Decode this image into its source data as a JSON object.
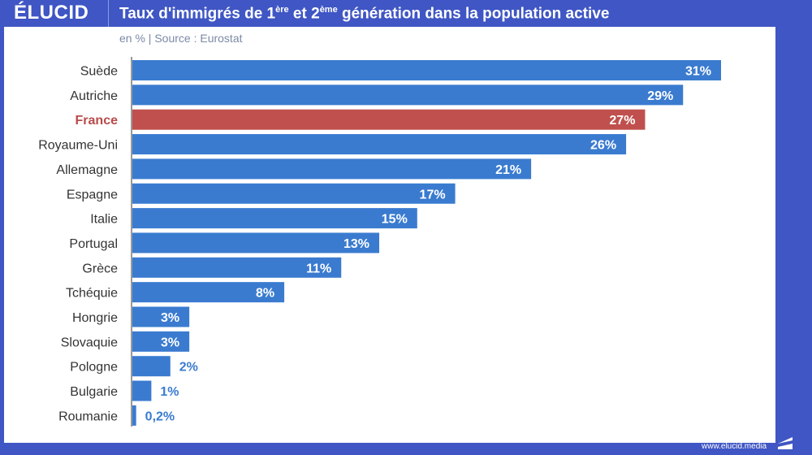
{
  "header": {
    "logo": "ÉLUCID",
    "title_parts": [
      "Taux d'immigrés de 1",
      "ère",
      " et 2",
      "ème",
      " génération dans la population active"
    ]
  },
  "subtitle": "en %  |  Source : Eurostat",
  "footer": {
    "url": "www.elucid.media"
  },
  "colors": {
    "bar": "#3a7bd0",
    "highlight": "#c0504d",
    "header": "#3f56c4",
    "label_outside": "#3a7bd0"
  },
  "chart_data": {
    "type": "bar",
    "orientation": "horizontal",
    "title": "Taux d'immigrés de 1ère et 2ème génération dans la population active",
    "subtitle": "en % | Source : Eurostat",
    "xlabel": "",
    "ylabel": "",
    "unit": "%",
    "xlim": [
      0,
      31
    ],
    "grid": false,
    "highlight": "France",
    "categories": [
      "Suède",
      "Autriche",
      "France",
      "Royaume-Uni",
      "Allemagne",
      "Espagne",
      "Italie",
      "Portugal",
      "Grèce",
      "Tchéquie",
      "Hongrie",
      "Slovaquie",
      "Pologne",
      "Bulgarie",
      "Roumanie"
    ],
    "values": [
      31,
      29,
      27,
      26,
      21,
      17,
      15,
      13,
      11,
      8,
      3,
      3,
      2,
      1,
      0.2
    ],
    "value_labels": [
      "31%",
      "29%",
      "27%",
      "26%",
      "21%",
      "17%",
      "15%",
      "13%",
      "11%",
      "8%",
      "3%",
      "3%",
      "2%",
      "1%",
      "0,2%"
    ]
  }
}
